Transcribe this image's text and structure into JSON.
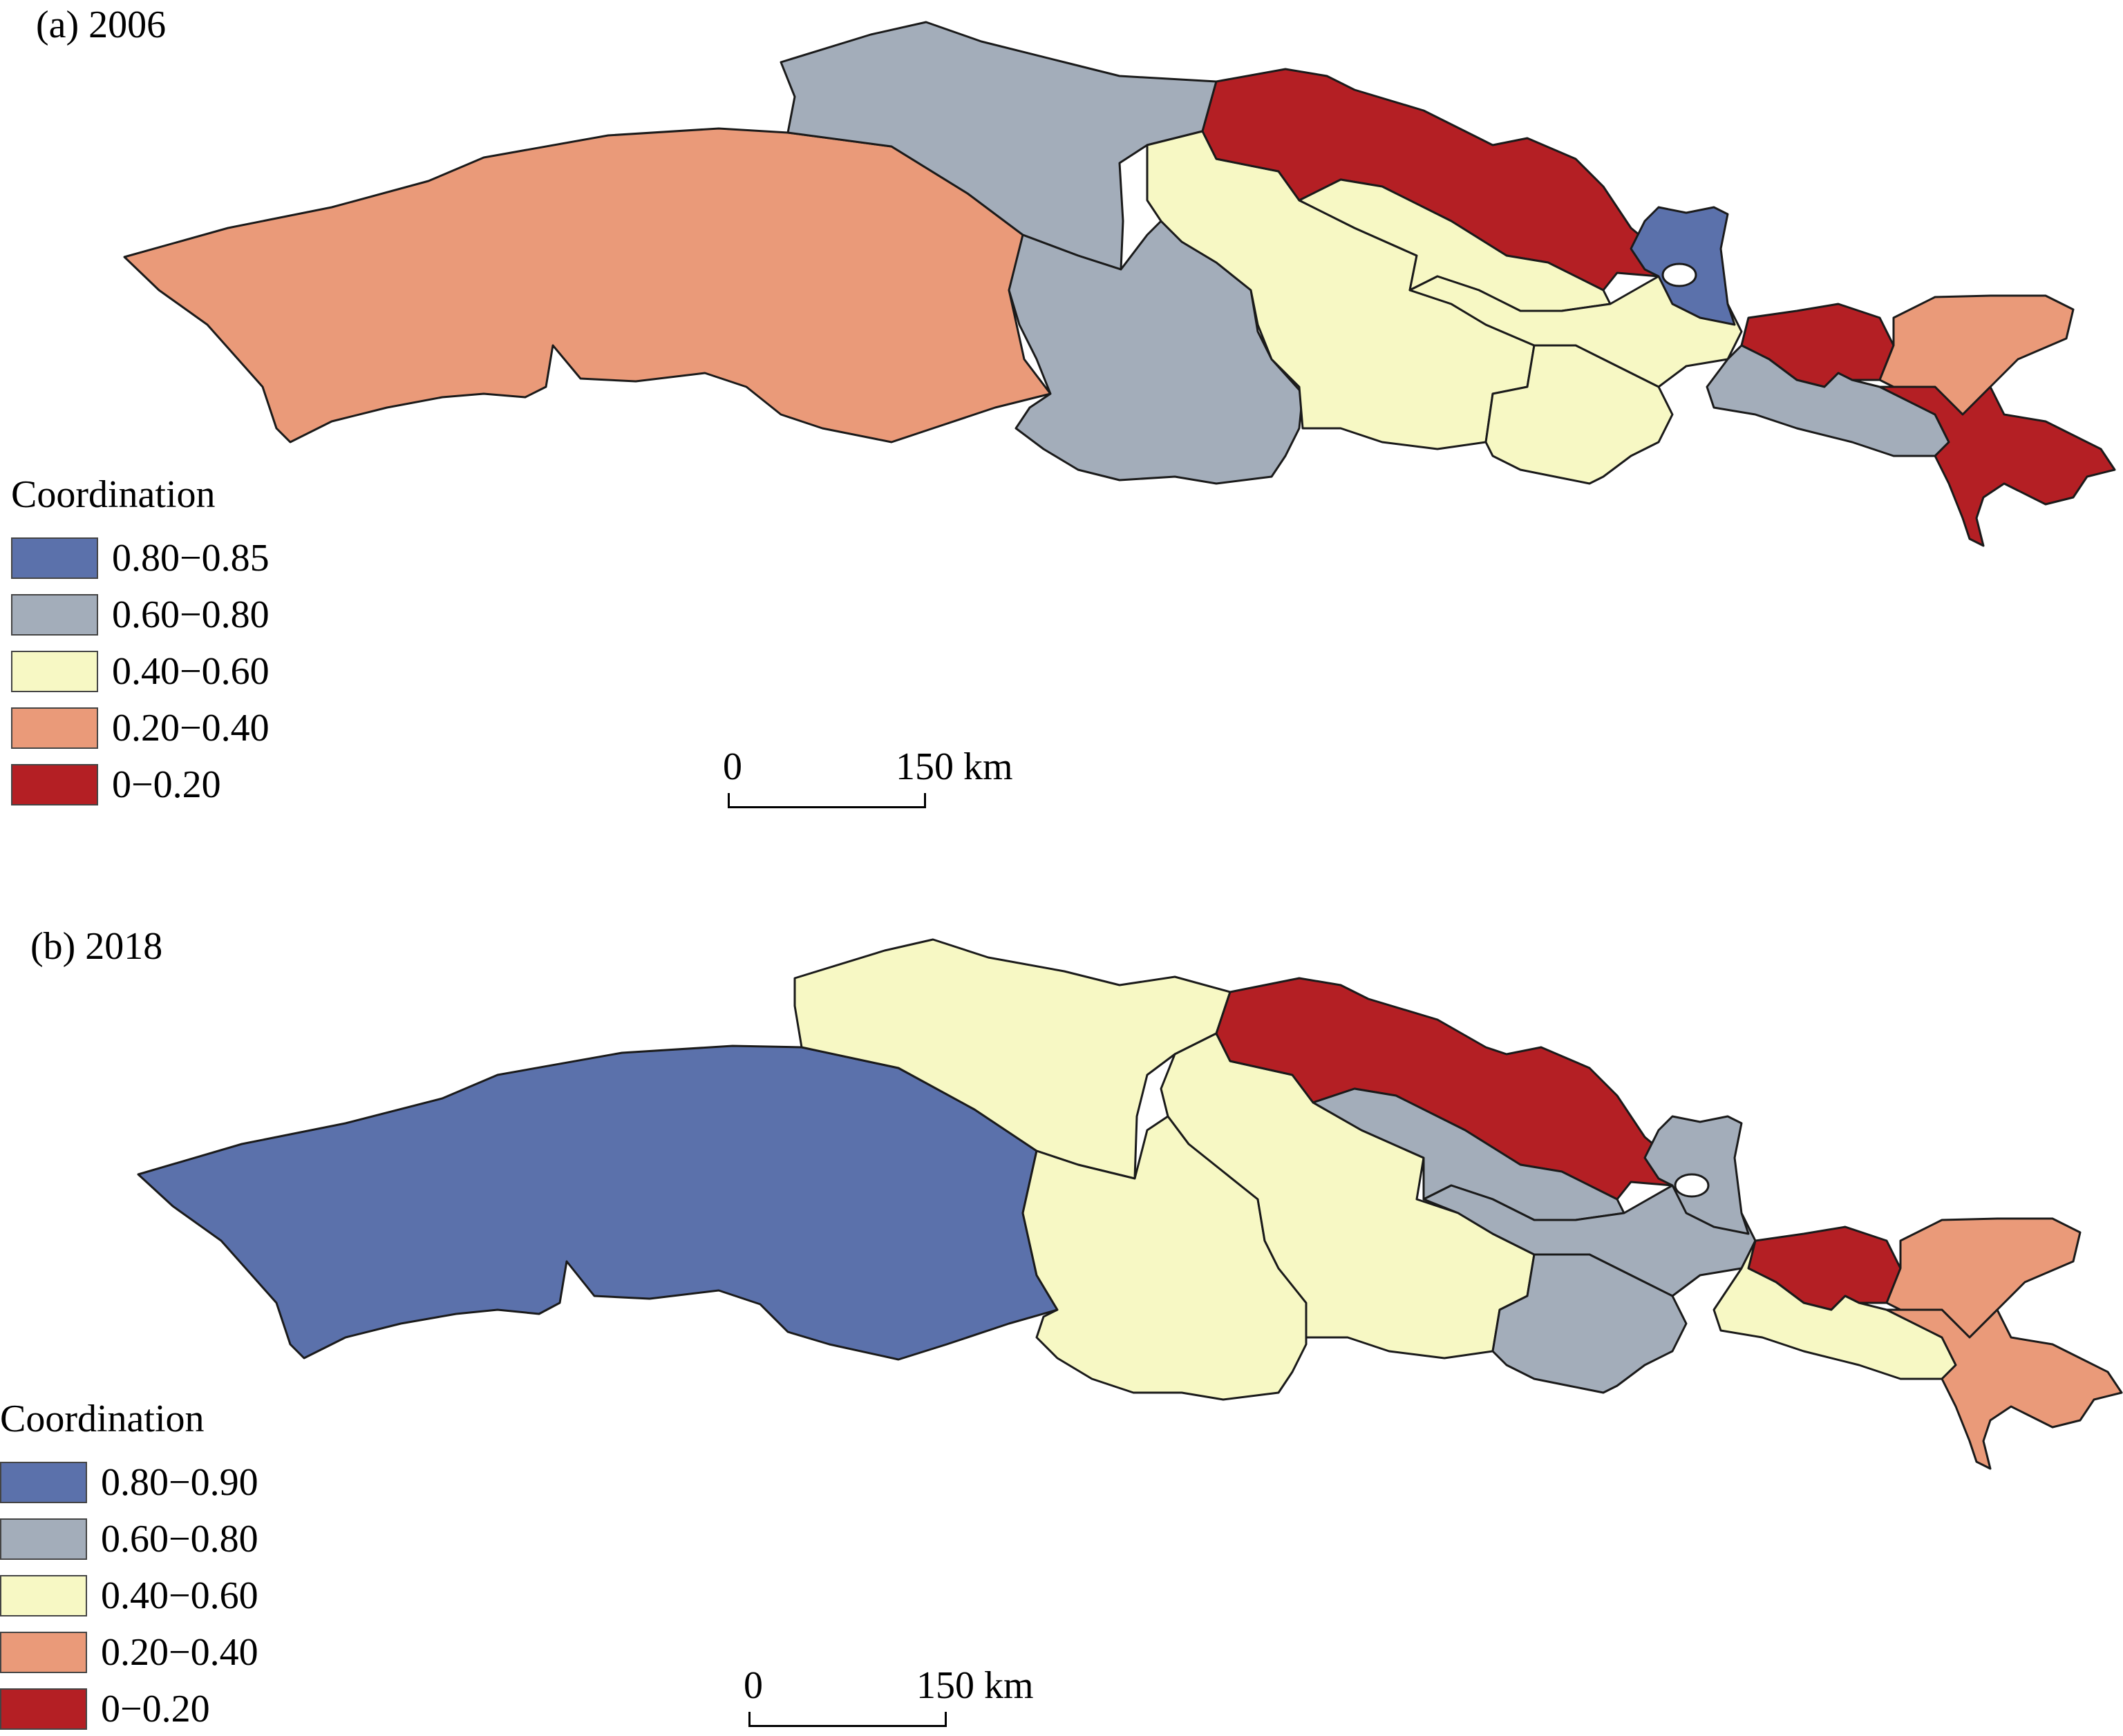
{
  "colors": {
    "class_blue": "#5b71ab",
    "class_grey": "#a3adba",
    "class_yellow": "#f7f8c4",
    "class_salmon": "#ea9a79",
    "class_red": "#b41f24"
  },
  "panels": [
    {
      "title": "(a) 2006",
      "legend": {
        "title": "Coordination",
        "classes": [
          {
            "label": "0.80−0.85",
            "color": "#5b71ab"
          },
          {
            "label": "0.60−0.80",
            "color": "#a3adba"
          },
          {
            "label": "0.40−0.60",
            "color": "#f7f8c4"
          },
          {
            "label": "0.20−0.40",
            "color": "#ea9a79"
          },
          {
            "label": "0−0.20",
            "color": "#b41f24"
          }
        ]
      },
      "scale_bar": {
        "start": "0",
        "end": "150 km"
      },
      "regions": [
        {
          "id": "west",
          "class": "0.20−0.40"
        },
        {
          "id": "north-central",
          "class": "0.60−0.80"
        },
        {
          "id": "central-south",
          "class": "0.60−0.80"
        },
        {
          "id": "central-strip",
          "class": "0.40−0.60"
        },
        {
          "id": "northeast-band",
          "class": "0−0.20"
        },
        {
          "id": "central-mid",
          "class": "0.40−0.60"
        },
        {
          "id": "diagonal-strip",
          "class": "0.40−0.60"
        },
        {
          "id": "south-central-east",
          "class": "0.40−0.60"
        },
        {
          "id": "lake-region",
          "class": "0.80−0.85"
        },
        {
          "id": "east-red-west",
          "class": "0−0.20"
        },
        {
          "id": "east-northeast",
          "class": "0.20−0.40"
        },
        {
          "id": "east-low-strip",
          "class": "0.60−0.80"
        },
        {
          "id": "east-peninsula",
          "class": "0−0.20"
        }
      ]
    },
    {
      "title": "(b) 2018",
      "legend": {
        "title": "Coordination",
        "classes": [
          {
            "label": "0.80−0.90",
            "color": "#5b71ab"
          },
          {
            "label": "0.60−0.80",
            "color": "#a3adba"
          },
          {
            "label": "0.40−0.60",
            "color": "#f7f8c4"
          },
          {
            "label": "0.20−0.40",
            "color": "#ea9a79"
          },
          {
            "label": "0−0.20",
            "color": "#b41f24"
          }
        ]
      },
      "scale_bar": {
        "start": "0",
        "end": "150 km"
      },
      "regions": [
        {
          "id": "west",
          "class": "0.80−0.90"
        },
        {
          "id": "north-central",
          "class": "0.40−0.60"
        },
        {
          "id": "central-south",
          "class": "0.40−0.60"
        },
        {
          "id": "central-strip",
          "class": "0.40−0.60"
        },
        {
          "id": "northeast-band",
          "class": "0−0.20"
        },
        {
          "id": "central-mid",
          "class": "0.60−0.80"
        },
        {
          "id": "diagonal-strip",
          "class": "0.60−0.80"
        },
        {
          "id": "south-central-east",
          "class": "0.60−0.80"
        },
        {
          "id": "lake-region",
          "class": "0.60−0.80"
        },
        {
          "id": "east-red-west",
          "class": "0−0.20"
        },
        {
          "id": "east-northeast",
          "class": "0.20−0.40"
        },
        {
          "id": "east-low-strip",
          "class": "0.40−0.60"
        },
        {
          "id": "east-peninsula",
          "class": "0.20−0.40"
        }
      ]
    }
  ]
}
